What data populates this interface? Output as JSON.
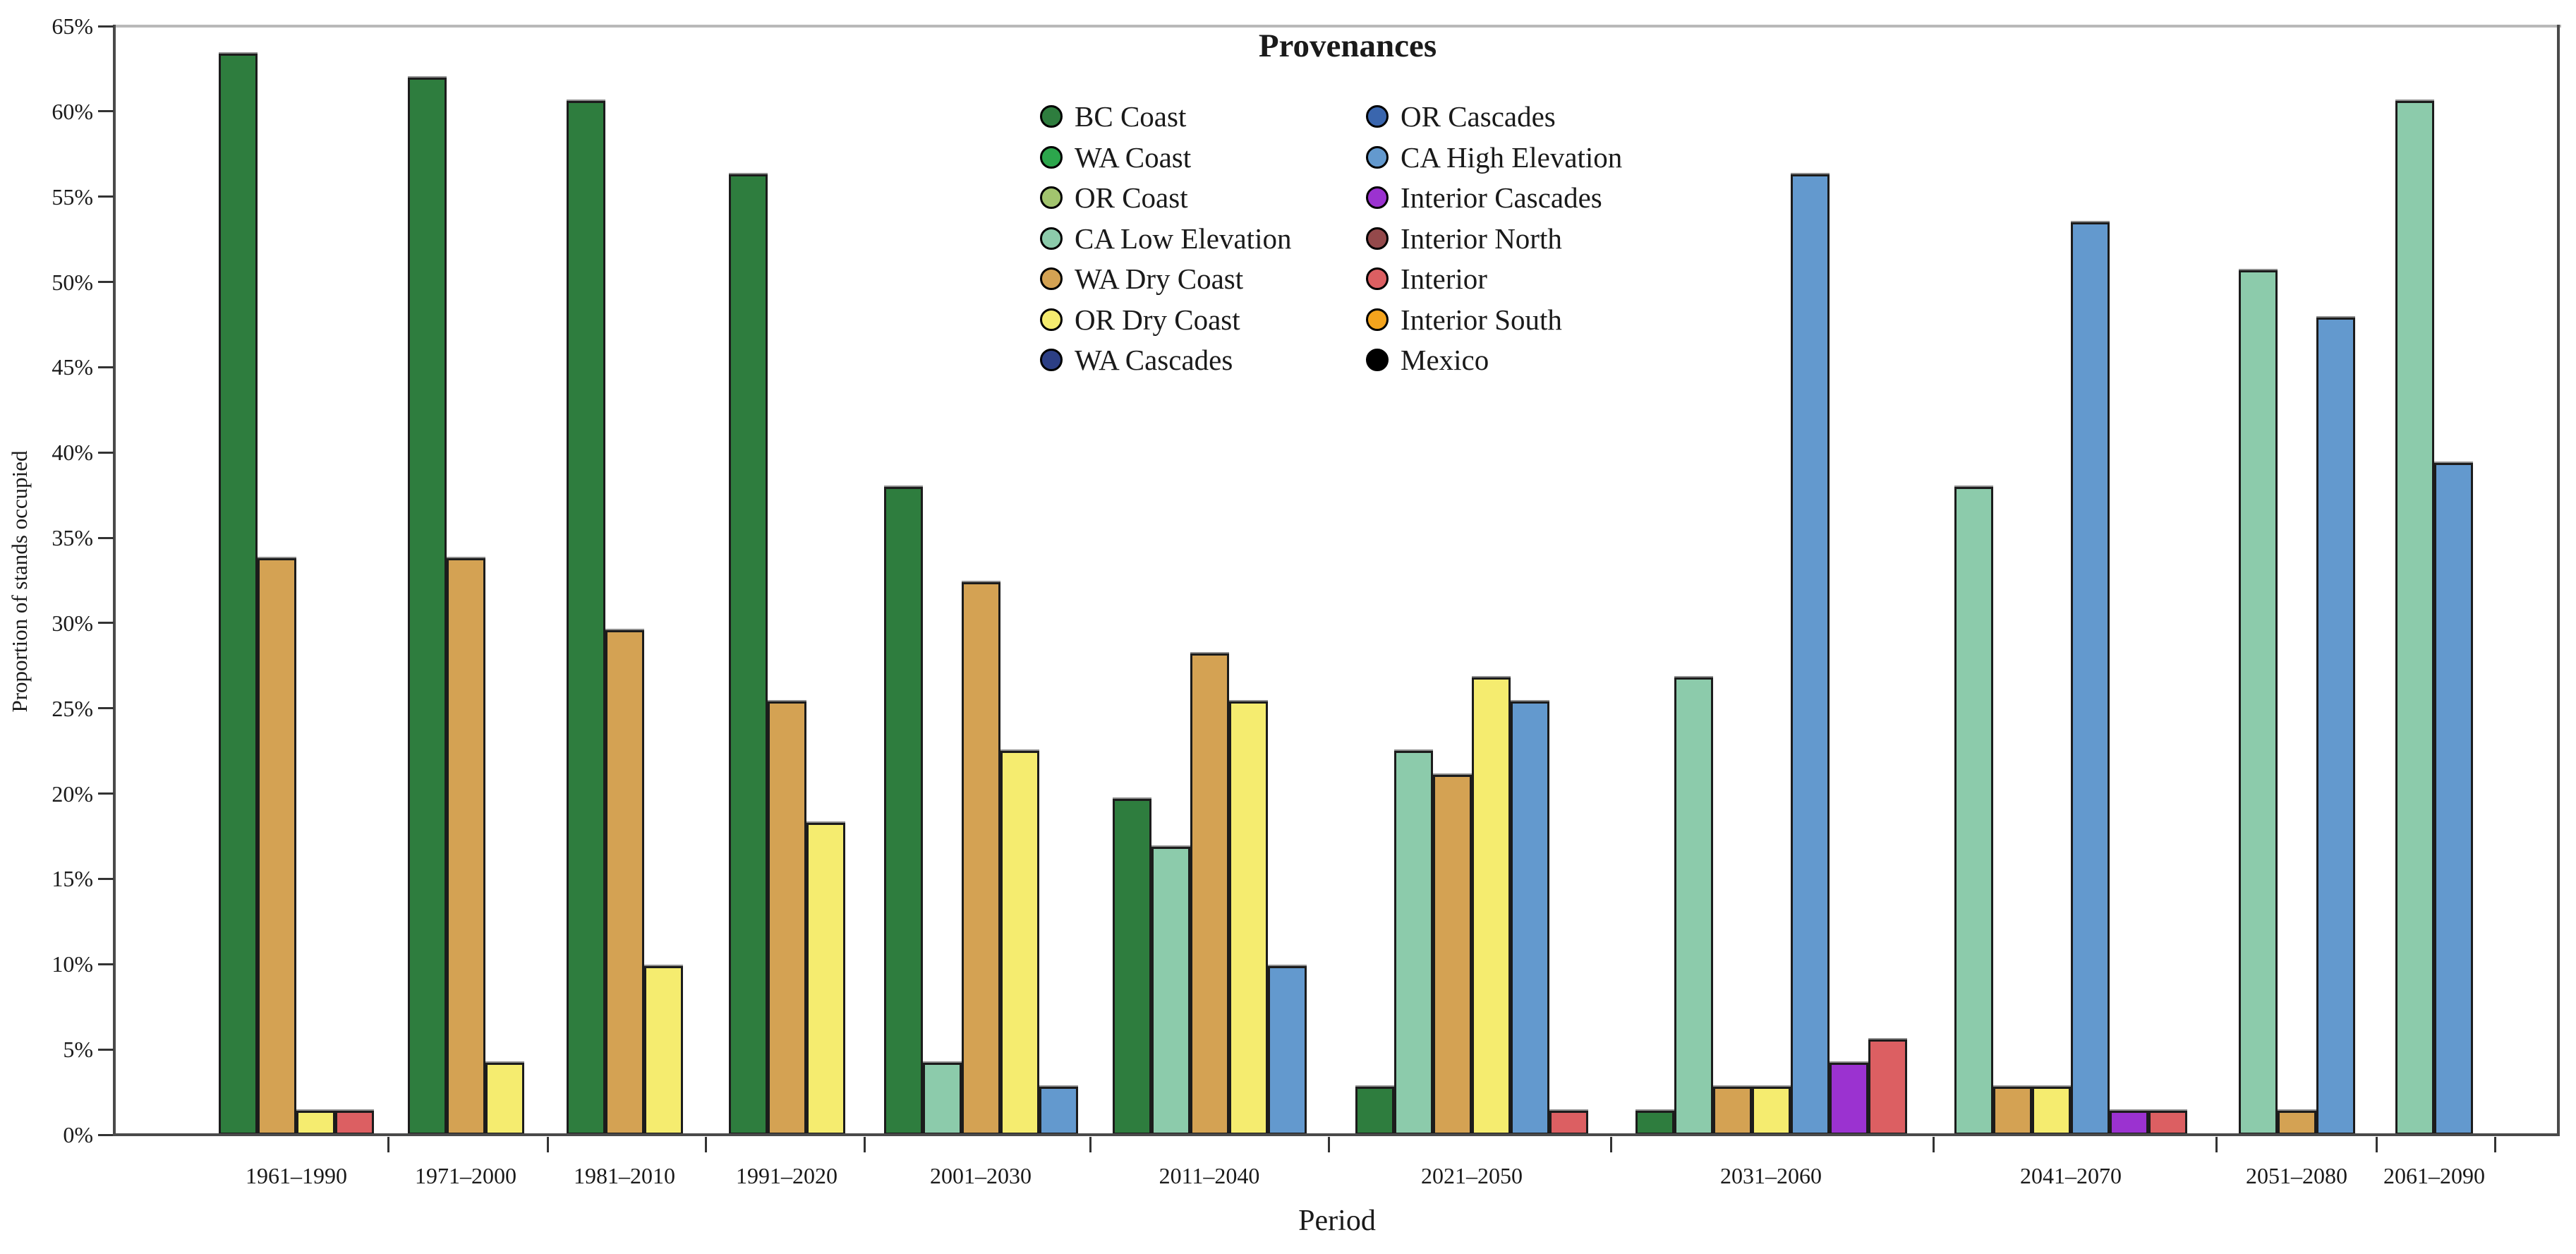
{
  "legend": {
    "title": "Provenances",
    "columns": 2,
    "entries_per_column": 7
  },
  "axes": {
    "x_label": "Period",
    "y_label": "Proportion of stands occupied",
    "y_tick_labels": [
      "0%",
      "5%",
      "10%",
      "15%",
      "20%",
      "25%",
      "30%",
      "35%",
      "40%",
      "45%",
      "50%",
      "55%",
      "60%",
      "65%"
    ]
  },
  "chart_data": {
    "type": "bar",
    "title": "Provenances",
    "xlabel": "Period",
    "ylabel": "Proportion of stands occupied",
    "ylim": [
      0,
      65
    ],
    "ytick_step": 5,
    "y_unit": "percent",
    "grid": false,
    "legend_position": "top center, two columns",
    "categories": [
      "1961–1990",
      "1971–2000",
      "1981–2010",
      "1991–2020",
      "2001–2030",
      "2011–2040",
      "2021–2050",
      "2031–2060",
      "2041–2070",
      "2051–2080",
      "2061–2090"
    ],
    "series": [
      {
        "name": "BC Coast",
        "color": "#2e7d3e",
        "values": [
          63.4,
          62.0,
          60.6,
          56.3,
          38.0,
          19.7,
          2.8,
          1.4,
          null,
          null,
          null
        ]
      },
      {
        "name": "WA Coast",
        "color": "#2ca64c",
        "values": [
          null,
          null,
          null,
          null,
          null,
          null,
          null,
          null,
          null,
          null,
          null
        ]
      },
      {
        "name": "OR Coast",
        "color": "#a2c46e",
        "values": [
          null,
          null,
          null,
          null,
          null,
          null,
          null,
          null,
          null,
          null,
          null
        ]
      },
      {
        "name": "CA Low Elevation",
        "color": "#8ccbab",
        "values": [
          null,
          null,
          null,
          null,
          4.2,
          16.9,
          22.5,
          26.8,
          38.0,
          50.7,
          60.6
        ]
      },
      {
        "name": "WA Dry Coast",
        "color": "#d4a253",
        "values": [
          33.8,
          33.8,
          29.6,
          25.4,
          32.4,
          28.2,
          21.1,
          2.8,
          2.8,
          1.4,
          null
        ]
      },
      {
        "name": "OR Dry Coast",
        "color": "#f5ec6f",
        "values": [
          1.4,
          4.2,
          9.9,
          18.3,
          22.5,
          25.4,
          26.8,
          2.8,
          2.8,
          null,
          null
        ]
      },
      {
        "name": "WA Cascades",
        "color": "#2c3f85",
        "values": [
          null,
          null,
          null,
          null,
          null,
          null,
          null,
          null,
          null,
          null,
          null
        ]
      },
      {
        "name": "OR Cascades",
        "color": "#3a66ae",
        "values": [
          null,
          null,
          null,
          null,
          null,
          null,
          null,
          null,
          null,
          null,
          null
        ]
      },
      {
        "name": "CA High Elevation",
        "color": "#6399ce",
        "values": [
          null,
          null,
          null,
          null,
          2.8,
          9.9,
          25.4,
          56.3,
          53.5,
          47.9,
          39.4
        ]
      },
      {
        "name": "Interior Cascades",
        "color": "#9b32d0",
        "values": [
          null,
          null,
          null,
          null,
          null,
          null,
          null,
          4.2,
          1.4,
          null,
          null
        ]
      },
      {
        "name": "Interior North",
        "color": "#94494b",
        "values": [
          null,
          null,
          null,
          null,
          null,
          null,
          null,
          null,
          null,
          null,
          null
        ]
      },
      {
        "name": "Interior",
        "color": "#dc5f62",
        "values": [
          1.4,
          null,
          null,
          null,
          null,
          null,
          1.4,
          5.6,
          1.4,
          null,
          null
        ]
      },
      {
        "name": "Interior South",
        "color": "#f4a41d",
        "values": [
          null,
          null,
          null,
          null,
          null,
          null,
          null,
          null,
          null,
          null,
          null
        ]
      },
      {
        "name": "Mexico",
        "color": "#000000",
        "values": [
          null,
          null,
          null,
          null,
          null,
          null,
          null,
          null,
          null,
          null,
          null
        ]
      }
    ]
  }
}
